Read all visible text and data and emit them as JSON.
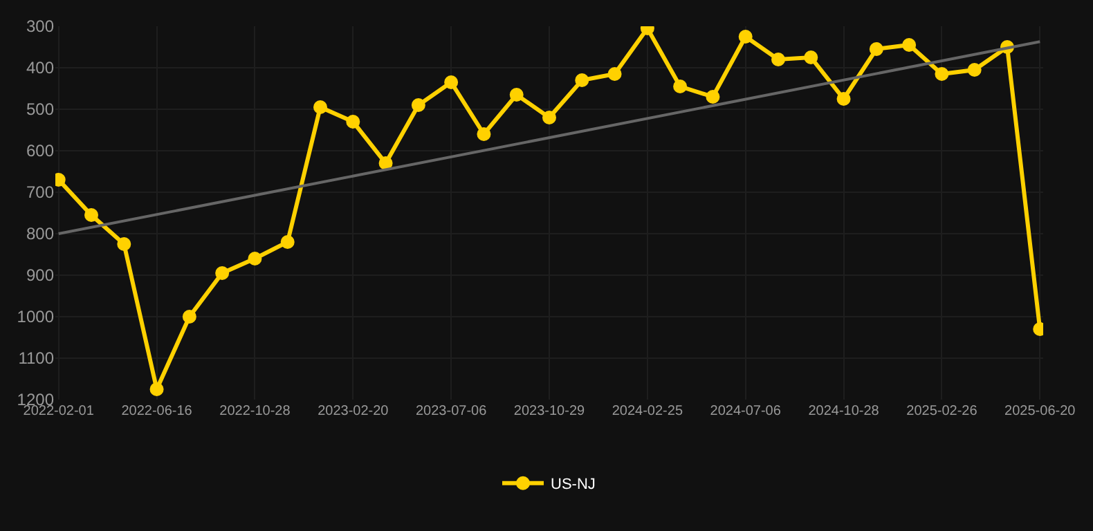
{
  "chart_data": {
    "type": "line",
    "categories": [
      "2022-02-01",
      null,
      null,
      "2022-06-16",
      null,
      null,
      "2022-10-28",
      null,
      null,
      "2023-02-20",
      null,
      null,
      "2023-07-06",
      null,
      null,
      "2023-10-29",
      null,
      null,
      "2024-02-25",
      null,
      null,
      "2024-07-06",
      null,
      null,
      "2024-10-28",
      null,
      null,
      "2025-02-26",
      null,
      null,
      "2025-06-20"
    ],
    "series": [
      {
        "name": "US-NJ",
        "color": "#ffd100",
        "marker": "circle",
        "values": [
          670,
          755,
          825,
          1175,
          1000,
          895,
          860,
          820,
          495,
          530,
          630,
          490,
          435,
          560,
          465,
          520,
          430,
          415,
          305,
          445,
          470,
          325,
          380,
          375,
          475,
          355,
          345,
          415,
          405,
          350,
          1030
        ]
      },
      {
        "type": "line",
        "color": "#666666",
        "marker": "none",
        "values": [
          800,
          null,
          null,
          null,
          null,
          null,
          null,
          null,
          null,
          null,
          null,
          null,
          null,
          null,
          null,
          null,
          null,
          null,
          null,
          null,
          null,
          null,
          null,
          null,
          null,
          null,
          null,
          null,
          null,
          null,
          337
        ]
      }
    ],
    "ylim": [
      1200,
      300
    ],
    "yticks": [
      300,
      400,
      500,
      600,
      700,
      800,
      900,
      1000,
      1100,
      1200
    ],
    "grid": true,
    "legend": "bottom",
    "line_style": "solid"
  }
}
